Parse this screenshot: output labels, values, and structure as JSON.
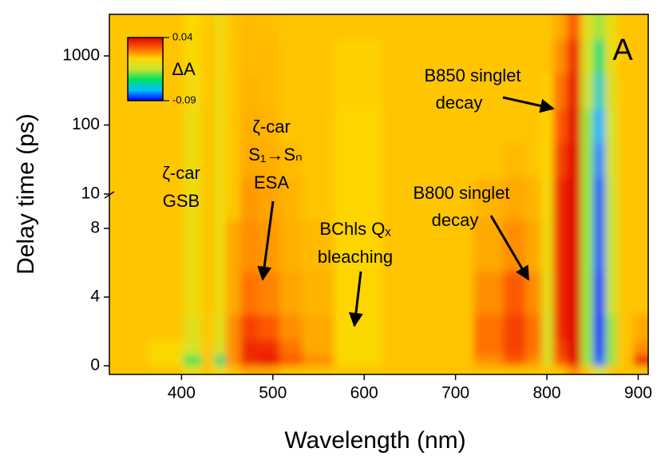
{
  "chart_data": {
    "type": "heatmap",
    "xlabel": "Wavelength (nm)",
    "ylabel": "Delay time (ps)",
    "panel_label": "A",
    "colorbar_label": "ΔA",
    "xlim": [
      321,
      911
    ],
    "xticks": [
      400,
      500,
      600,
      700,
      800,
      900
    ],
    "ylim": [
      -0.5,
      4000
    ],
    "ybreak": 10,
    "yscale_upper": "log",
    "yticks": [
      0,
      4,
      8,
      10,
      100,
      1000
    ],
    "zlim": [
      -0.09,
      0.04
    ],
    "zticks": [
      0.04,
      -0.09
    ],
    "colormap": [
      "#0000ff",
      "#00c0ff",
      "#00e060",
      "#c8e632",
      "#ffd700",
      "#ff6000",
      "#e00000"
    ],
    "annotations": [
      [
        "ζ-car",
        "GSB"
      ],
      [
        "ζ-car",
        "S₁→Sₙ",
        "ESA"
      ],
      [
        "BChls Qₓ",
        "bleaching"
      ],
      [
        "B800 singlet",
        "decay"
      ],
      [
        "B850 singlet",
        "decay"
      ]
    ],
    "x": [
      340,
      390,
      415,
      430,
      443,
      455,
      475,
      495,
      520,
      545,
      590,
      650,
      700,
      740,
      765,
      790,
      800,
      815,
      830,
      845,
      858,
      870,
      885,
      905
    ],
    "y": [
      -0.3,
      0.3,
      1,
      2,
      4,
      7,
      10,
      30,
      100,
      300,
      1000,
      3000
    ],
    "z": [
      [
        0,
        0,
        -0.01,
        0,
        -0.01,
        0,
        0.005,
        0.005,
        0,
        0,
        0,
        0,
        0,
        0,
        0,
        0,
        0,
        0,
        0.01,
        0,
        -0.02,
        0,
        0,
        0
      ],
      [
        0,
        -0.005,
        -0.04,
        0,
        -0.05,
        0.01,
        0.03,
        0.035,
        0.02,
        0.01,
        -0.005,
        0,
        0,
        0.01,
        0.02,
        0.01,
        -0.02,
        0.02,
        0.04,
        -0.03,
        -0.08,
        -0.03,
        0,
        0.03
      ],
      [
        0,
        -0.005,
        -0.02,
        0,
        -0.02,
        0.01,
        0.03,
        0.03,
        0.015,
        0.005,
        -0.005,
        0,
        0,
        0.015,
        0.025,
        0.015,
        -0.02,
        0.025,
        0.04,
        -0.03,
        -0.085,
        -0.03,
        0,
        0.01
      ],
      [
        0,
        0,
        -0.015,
        0,
        -0.015,
        0.01,
        0.025,
        0.02,
        0.01,
        0.005,
        -0.005,
        0,
        0,
        0.015,
        0.025,
        0.015,
        -0.02,
        0.03,
        0.04,
        -0.03,
        -0.09,
        -0.03,
        0,
        0.005
      ],
      [
        0,
        0,
        -0.01,
        0,
        -0.01,
        0.005,
        0.015,
        0.012,
        0.006,
        0.003,
        -0.003,
        0,
        0,
        0.01,
        0.02,
        0.01,
        -0.015,
        0.03,
        0.04,
        -0.03,
        -0.085,
        -0.025,
        0,
        0
      ],
      [
        0,
        0,
        -0.01,
        0,
        -0.01,
        0.005,
        0.01,
        0.008,
        0.004,
        0.002,
        -0.003,
        0,
        0,
        0.005,
        0.01,
        0.005,
        -0.01,
        0.03,
        0.04,
        -0.03,
        -0.08,
        -0.025,
        0,
        0
      ],
      [
        0,
        0,
        -0.01,
        0,
        -0.01,
        0,
        0.008,
        0.006,
        0.003,
        0,
        -0.003,
        0,
        0,
        0.003,
        0.005,
        0.003,
        -0.008,
        0.03,
        0.04,
        -0.03,
        -0.08,
        -0.025,
        0,
        0
      ],
      [
        0,
        0,
        -0.01,
        0,
        -0.01,
        0,
        0.005,
        0.004,
        0.002,
        0,
        -0.003,
        0,
        0,
        0,
        0.002,
        0,
        -0.005,
        0.025,
        0.04,
        -0.03,
        -0.075,
        -0.02,
        0,
        0
      ],
      [
        0,
        0,
        -0.01,
        0,
        -0.01,
        0,
        0.004,
        0.003,
        0,
        0,
        -0.003,
        0,
        0,
        0,
        0,
        0,
        -0.003,
        0.02,
        0.038,
        -0.03,
        -0.07,
        -0.02,
        0,
        0
      ],
      [
        0,
        0,
        -0.008,
        0,
        -0.01,
        0,
        0.003,
        0.002,
        0,
        0,
        -0.002,
        0,
        0,
        0,
        0,
        0,
        -0.002,
        0.015,
        0.035,
        -0.025,
        -0.06,
        -0.015,
        0,
        0
      ],
      [
        0,
        0,
        -0.006,
        0,
        -0.008,
        0,
        0.002,
        0.002,
        0,
        0,
        -0.002,
        0,
        0,
        0,
        0,
        0,
        0,
        0.01,
        0.03,
        -0.02,
        -0.05,
        -0.01,
        0,
        0
      ],
      [
        0,
        0,
        -0.005,
        0,
        -0.01,
        0,
        0.002,
        0.001,
        0,
        0,
        0,
        0,
        0,
        0,
        0,
        0,
        0,
        0.005,
        0.02,
        -0.015,
        -0.03,
        -0.01,
        0,
        0
      ]
    ]
  }
}
